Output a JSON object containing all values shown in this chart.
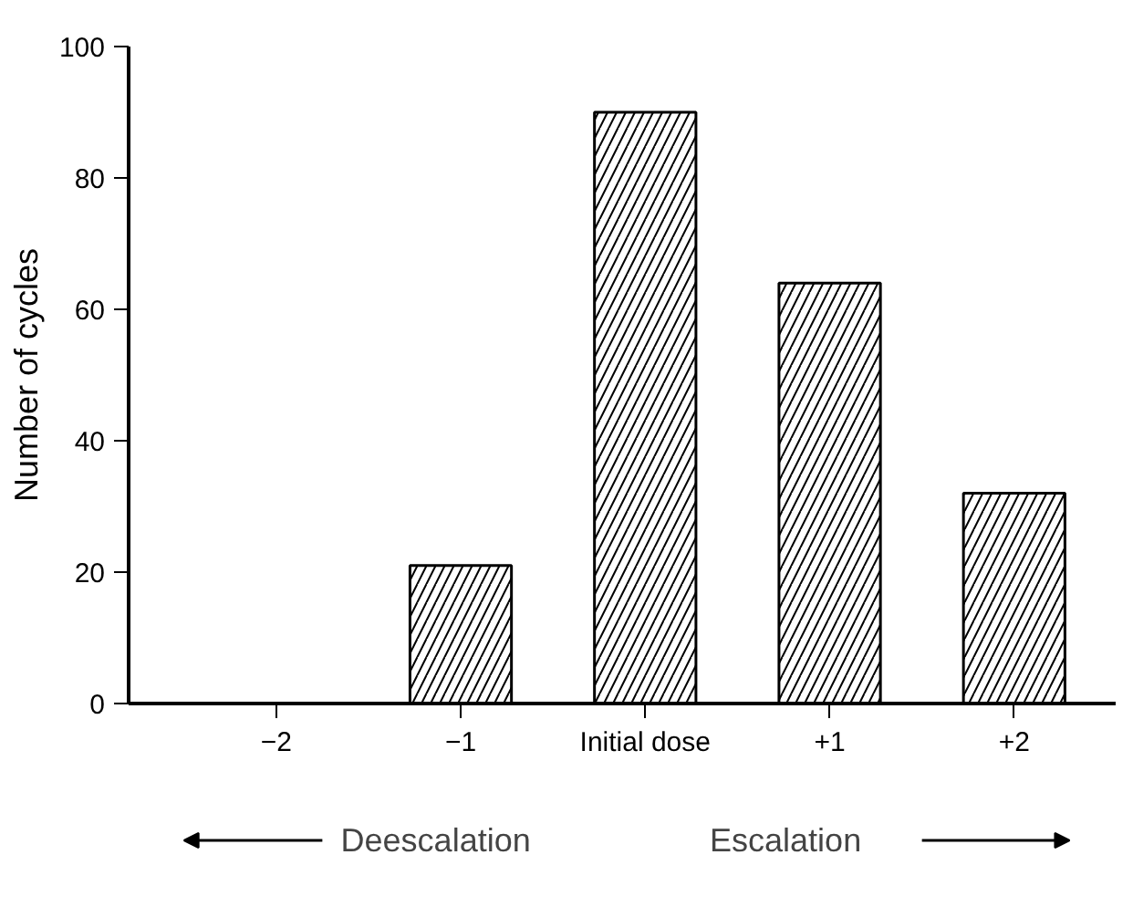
{
  "chart_data": {
    "type": "bar",
    "ylabel": "Number of cycles",
    "categories": [
      "−2",
      "−1",
      "Initial dose",
      "+1",
      "+2"
    ],
    "values": [
      0,
      21,
      90,
      64,
      32
    ],
    "color": "#ffffff",
    "ylim": [
      0,
      100
    ],
    "yticks": [
      0,
      20,
      40,
      60,
      80,
      100
    ],
    "grid": false,
    "annotations": [
      "Deescalation",
      "Escalation"
    ]
  }
}
